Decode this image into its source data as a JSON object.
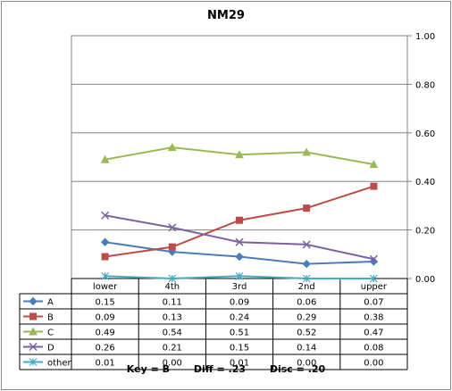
{
  "chart_data": {
    "type": "line",
    "title": "NM29",
    "categories": [
      "lower",
      "4th",
      "3rd",
      "2nd",
      "upper"
    ],
    "ylim": [
      0,
      1
    ],
    "y_ticks": [
      "0.00",
      "0.20",
      "0.40",
      "0.60",
      "0.80",
      "1.00"
    ],
    "y_axis_side": "right",
    "grid": true,
    "legend": "data-table",
    "series": [
      {
        "name": "A",
        "values": [
          0.15,
          0.11,
          0.09,
          0.06,
          0.07
        ],
        "labels": [
          "0.15",
          "0.11",
          "0.09",
          "0.06",
          "0.07"
        ],
        "color": "#4a7ebb",
        "marker": "diamond"
      },
      {
        "name": "B",
        "values": [
          0.09,
          0.13,
          0.24,
          0.29,
          0.38
        ],
        "labels": [
          "0.09",
          "0.13",
          "0.24",
          "0.29",
          "0.38"
        ],
        "color": "#be4b48",
        "marker": "square"
      },
      {
        "name": "C",
        "values": [
          0.49,
          0.54,
          0.51,
          0.52,
          0.47
        ],
        "labels": [
          "0.49",
          "0.54",
          "0.51",
          "0.52",
          "0.47"
        ],
        "color": "#98b954",
        "marker": "triangle"
      },
      {
        "name": "D",
        "values": [
          0.26,
          0.21,
          0.15,
          0.14,
          0.08
        ],
        "labels": [
          "0.26",
          "0.21",
          "0.15",
          "0.14",
          "0.08"
        ],
        "color": "#7d60a0",
        "marker": "x"
      },
      {
        "name": "other",
        "values": [
          0.01,
          0.0,
          0.01,
          0.0,
          0.0
        ],
        "labels": [
          "0.01",
          "0.00",
          "0.01",
          "0.00",
          "0.00"
        ],
        "color": "#46aac5",
        "marker": "star"
      }
    ],
    "footer": {
      "key": "Key = B",
      "diff": "Diff = .23",
      "disc": "Disc = .20"
    }
  }
}
